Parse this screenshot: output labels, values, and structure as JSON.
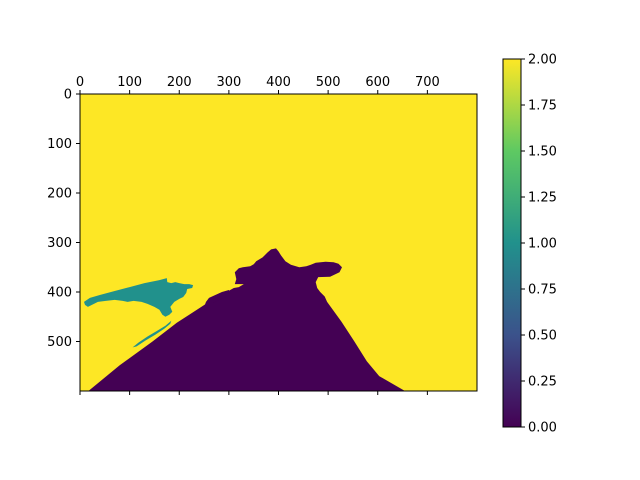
{
  "chart_data": {
    "type": "heatmap",
    "title": "",
    "xlabel": "",
    "ylabel": "",
    "xlim": [
      0,
      800
    ],
    "ylim": [
      600,
      0
    ],
    "x_axis_position": "top",
    "x_ticks": [
      0,
      100,
      200,
      300,
      400,
      500,
      600,
      700
    ],
    "y_ticks": [
      0,
      100,
      200,
      300,
      400,
      500
    ],
    "grid": false,
    "colormap": "viridis",
    "colormap_stops": [
      "#440154",
      "#3b528b",
      "#21918c",
      "#5ec962",
      "#fde725"
    ],
    "background_value": 2,
    "regions": [
      {
        "value": 0,
        "color": "#440154",
        "outline": [
          [
            17,
            600
          ],
          [
            80,
            548
          ],
          [
            146,
            500
          ],
          [
            195,
            462
          ],
          [
            220,
            446
          ],
          [
            260,
            420
          ],
          [
            310,
            392
          ],
          [
            320,
            390
          ],
          [
            330,
            384
          ],
          [
            312,
            384
          ],
          [
            315,
            374
          ],
          [
            312,
            360
          ],
          [
            320,
            352
          ],
          [
            328,
            350
          ],
          [
            343,
            348
          ],
          [
            350,
            344
          ],
          [
            355,
            338
          ],
          [
            368,
            330
          ],
          [
            378,
            320
          ],
          [
            385,
            314
          ],
          [
            395,
            312
          ],
          [
            400,
            318
          ],
          [
            405,
            326
          ],
          [
            414,
            338
          ],
          [
            425,
            345
          ],
          [
            442,
            350
          ],
          [
            456,
            348
          ],
          [
            465,
            345
          ],
          [
            475,
            341
          ],
          [
            495,
            339
          ],
          [
            511,
            340
          ],
          [
            521,
            343
          ],
          [
            528,
            350
          ],
          [
            523,
            360
          ],
          [
            504,
            369
          ],
          [
            480,
            370
          ],
          [
            475,
            380
          ],
          [
            478,
            392
          ],
          [
            484,
            400
          ],
          [
            493,
            409
          ],
          [
            498,
            420
          ],
          [
            527,
            460
          ],
          [
            553,
            500
          ],
          [
            578,
            540
          ],
          [
            603,
            570
          ],
          [
            655,
            600
          ]
        ]
      },
      {
        "value": 0,
        "color": "#440154",
        "outline": [
          [
            300,
            396
          ],
          [
            286,
            400
          ],
          [
            260,
            412
          ],
          [
            254,
            420
          ],
          [
            250,
            430
          ],
          [
            250,
            436
          ],
          [
            256,
            434
          ],
          [
            262,
            430
          ],
          [
            268,
            422
          ],
          [
            280,
            416
          ],
          [
            294,
            410
          ],
          [
            302,
            402
          ]
        ]
      },
      {
        "value": 1,
        "color": "#21918c",
        "outline": [
          [
            8,
            420
          ],
          [
            20,
            412
          ],
          [
            40,
            406
          ],
          [
            70,
            398
          ],
          [
            100,
            390
          ],
          [
            130,
            382
          ],
          [
            160,
            376
          ],
          [
            175,
            372
          ],
          [
            176,
            380
          ],
          [
            184,
            382
          ],
          [
            192,
            380
          ],
          [
            200,
            382
          ],
          [
            210,
            384
          ],
          [
            220,
            384
          ],
          [
            228,
            386
          ],
          [
            226,
            392
          ],
          [
            216,
            394
          ],
          [
            214,
            402
          ],
          [
            208,
            410
          ],
          [
            200,
            414
          ],
          [
            190,
            420
          ],
          [
            182,
            430
          ],
          [
            186,
            440
          ],
          [
            180,
            446
          ],
          [
            172,
            450
          ],
          [
            166,
            446
          ],
          [
            160,
            436
          ],
          [
            150,
            430
          ],
          [
            136,
            424
          ],
          [
            124,
            420
          ],
          [
            108,
            418
          ],
          [
            96,
            420
          ],
          [
            86,
            418
          ],
          [
            70,
            416
          ],
          [
            52,
            418
          ],
          [
            36,
            420
          ],
          [
            24,
            426
          ],
          [
            16,
            430
          ],
          [
            10,
            426
          ]
        ]
      },
      {
        "value": 1,
        "color": "#21918c",
        "outline": [
          [
            106,
            512
          ],
          [
            118,
            502
          ],
          [
            136,
            490
          ],
          [
            156,
            478
          ],
          [
            172,
            468
          ],
          [
            184,
            458
          ],
          [
            182,
            464
          ],
          [
            170,
            474
          ],
          [
            152,
            486
          ],
          [
            132,
            498
          ],
          [
            114,
            510
          ]
        ]
      }
    ],
    "colorbar": {
      "min": 0,
      "max": 2,
      "ticks": [
        0.0,
        0.25,
        0.5,
        0.75,
        1.0,
        1.25,
        1.5,
        1.75,
        2.0
      ],
      "tick_labels": [
        "0.00",
        "0.25",
        "0.50",
        "0.75",
        "1.00",
        "1.25",
        "1.50",
        "1.75",
        "2.00"
      ]
    }
  }
}
